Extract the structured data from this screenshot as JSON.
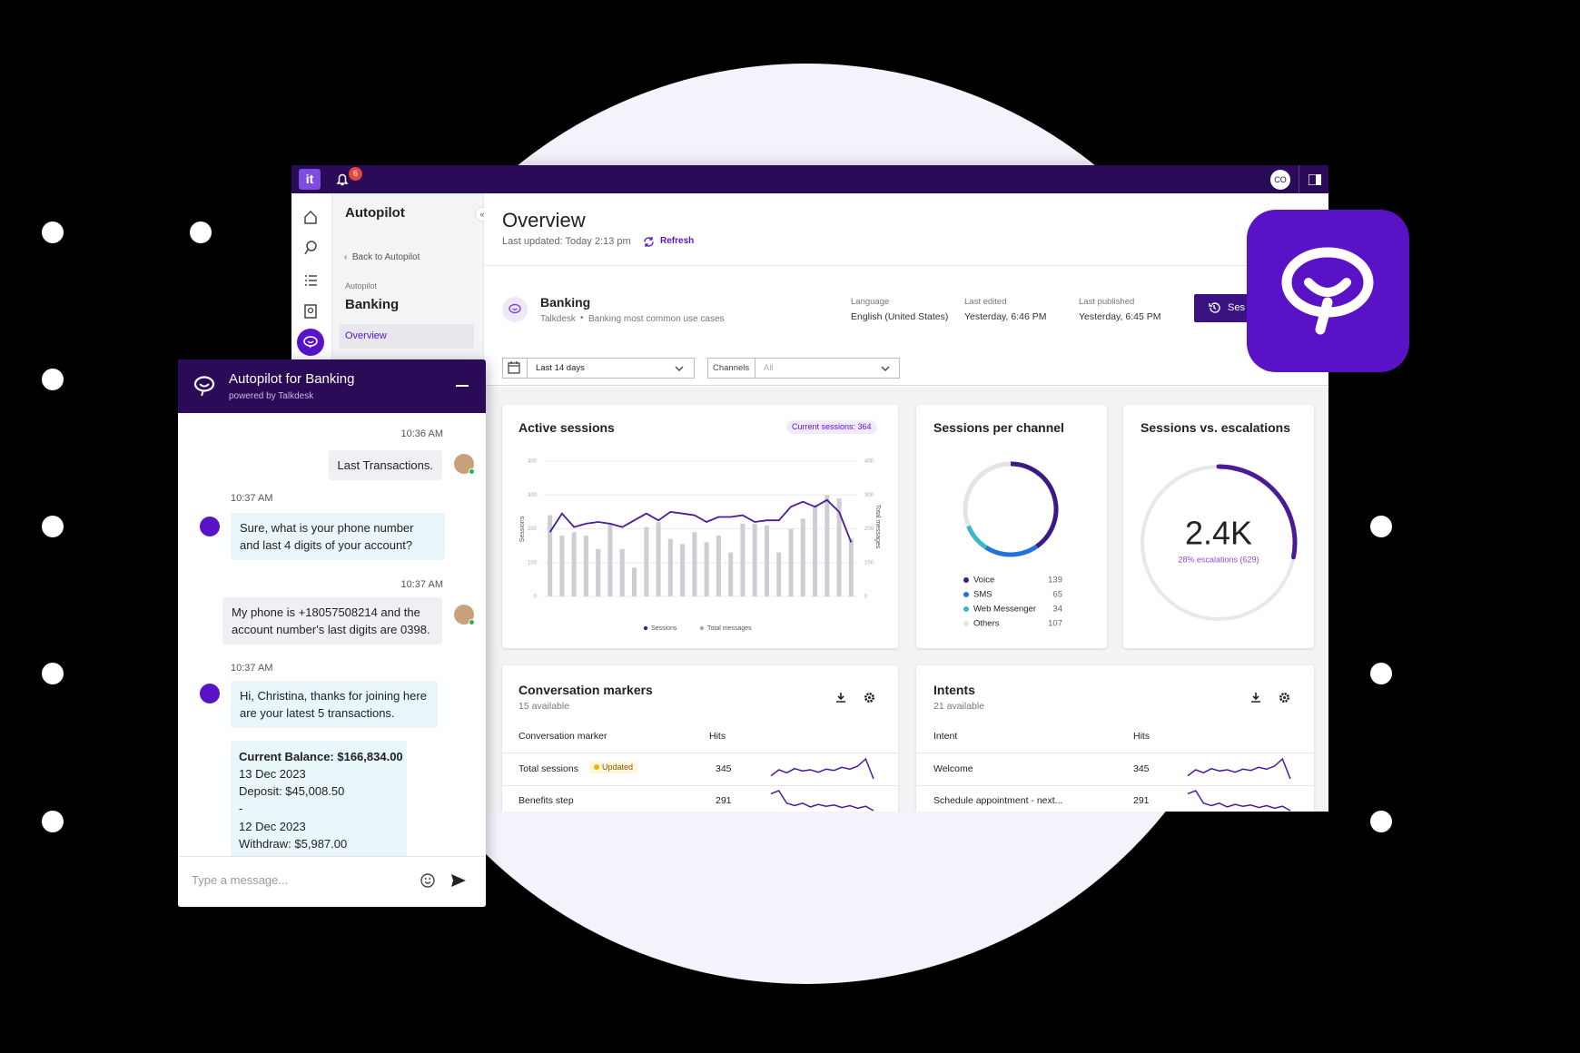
{
  "topbar": {
    "logo": "it",
    "notifications": "6",
    "avatar": "CO"
  },
  "nav": {
    "title": "Autopilot",
    "back": "Back to Autopilot",
    "section": "Autopilot",
    "name": "Banking",
    "active_item": "Overview"
  },
  "header": {
    "title": "Overview",
    "updated": "Last updated: Today 2:13 pm",
    "refresh": "Refresh"
  },
  "bot": {
    "name": "Banking",
    "owner": "Talkdesk",
    "description": "Banking most common use cases",
    "meta": [
      {
        "label": "Language",
        "value": "English (United States)"
      },
      {
        "label": "Last edited",
        "value": "Yesterday, 6:46 PM"
      },
      {
        "label": "Last published",
        "value": "Yesterday, 6:45 PM"
      }
    ],
    "button": "Ses"
  },
  "filters": {
    "date": "Last 14 days",
    "channels_label": "Channels",
    "channels_value": "All"
  },
  "active_sessions": {
    "type": "bar",
    "title": "Active sessions",
    "badge": "Current sessions: 364",
    "y_label": "Sessions",
    "y2_label": "Total messages",
    "ylim": [
      0,
      400
    ],
    "yticks": [
      0,
      100,
      200,
      300,
      400
    ],
    "y2lim": [
      0,
      400
    ],
    "y2ticks": [
      0,
      100,
      200,
      300,
      400
    ],
    "series": [
      {
        "name": "Sessions",
        "type": "line",
        "color": "#4a1a9a",
        "values": [
          190,
          245,
          205,
          215,
          220,
          215,
          205,
          225,
          245,
          225,
          250,
          245,
          240,
          220,
          235,
          235,
          240,
          220,
          225,
          225,
          265,
          280,
          265,
          285,
          250,
          160
        ]
      },
      {
        "name": "Total messages",
        "type": "bar",
        "axis": "y2",
        "color": "#cdcdd4",
        "values": [
          240,
          180,
          190,
          180,
          140,
          215,
          140,
          85,
          205,
          220,
          170,
          155,
          190,
          160,
          180,
          130,
          215,
          215,
          210,
          130,
          200,
          230,
          270,
          300,
          290,
          170
        ]
      }
    ]
  },
  "sessions_per_channel": {
    "type": "pie",
    "title": "Sessions per channel",
    "series": [
      {
        "name": "Voice",
        "color": "#3b1a86",
        "value": 139
      },
      {
        "name": "SMS",
        "color": "#2272dc",
        "value": 65
      },
      {
        "name": "Web Messenger",
        "color": "#3db6c6",
        "value": 34
      },
      {
        "name": "Others",
        "color": "#e4e4e8",
        "value": 107
      }
    ]
  },
  "sessions_vs_escalations": {
    "title": "Sessions vs. escalations",
    "total": "2.4K",
    "escalation_pct": 28,
    "escalation_label": "28% escalations (629)",
    "color": "#4a1a9a"
  },
  "conversation_markers": {
    "title": "Conversation markers",
    "subtitle": "15 available",
    "columns": [
      "Conversation marker",
      "Hits"
    ],
    "rows": [
      {
        "name": "Total sessions",
        "badge": "Updated",
        "hits": 345,
        "trend": [
          2,
          3,
          2.5,
          3.2,
          2.8,
          3,
          2.6,
          3.1,
          2.9,
          3.4,
          3.1,
          3.6,
          4.8,
          1.5
        ]
      },
      {
        "name": "Benefits step",
        "hits": 291,
        "trend": [
          4.5,
          5,
          3,
          2.6,
          3,
          2.4,
          2.8,
          2.5,
          2.7,
          2.3,
          2.6,
          2.2,
          2.5,
          1.8
        ]
      }
    ]
  },
  "intents": {
    "title": "Intents",
    "subtitle": "21 available",
    "columns": [
      "Intent",
      "Hits"
    ],
    "rows": [
      {
        "name": "Welcome",
        "hits": 345,
        "trend": [
          2,
          3,
          2.5,
          3.2,
          2.8,
          3,
          2.6,
          3.1,
          2.9,
          3.4,
          3.1,
          3.6,
          4.8,
          1.5
        ]
      },
      {
        "name": "Schedule appointment - next...",
        "hits": 291,
        "trend": [
          4.5,
          5,
          3,
          2.6,
          3,
          2.4,
          2.8,
          2.5,
          2.7,
          2.3,
          2.6,
          2.2,
          2.5,
          1.8
        ]
      }
    ]
  },
  "chat": {
    "title": "Autopilot for Banking",
    "subtitle": "powered by Talkdesk",
    "messages": [
      {
        "time": "10:36 AM",
        "text": "Last Transactions."
      },
      {
        "time": "10:37 AM",
        "text": "Sure, what is your phone number and last 4 digits of your account?"
      },
      {
        "time": "10:37 AM",
        "text": "My phone is +18057508214 and the account number's last digits are 0398."
      },
      {
        "time": "10:37 AM",
        "text": "Hi, Christina, thanks for joining here are your latest 5 transactions."
      }
    ],
    "transactions": [
      "Current Balance: $166,834.00",
      "13 Dec 2023",
      "Deposit: $45,008.50",
      "-",
      "12 Dec 2023",
      "Withdraw: $5,987.00"
    ],
    "placeholder": "Type a message..."
  }
}
